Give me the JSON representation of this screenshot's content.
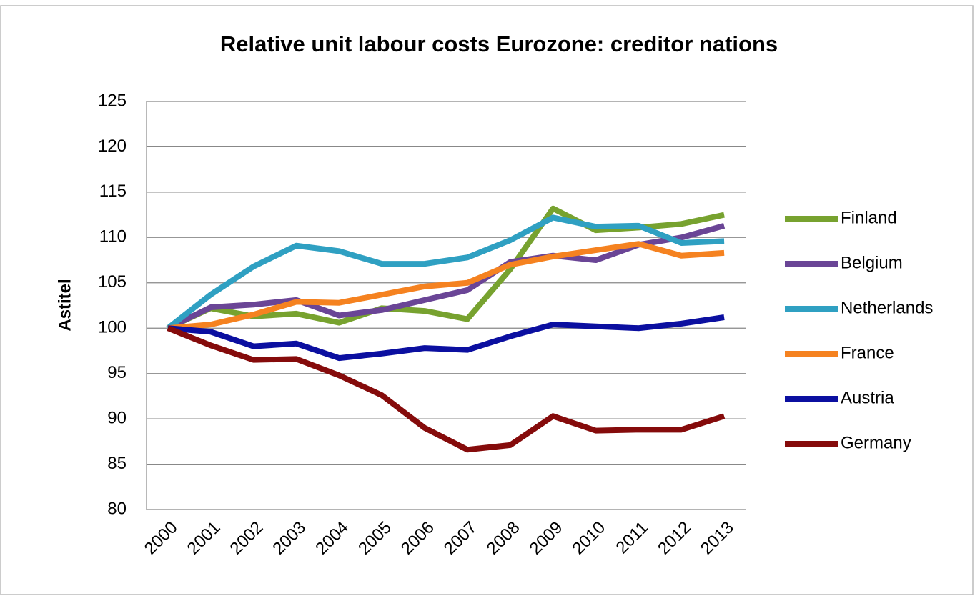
{
  "chart_data": {
    "type": "line",
    "title": "Relative unit labour costs Eurozone: creditor nations",
    "y_label": "Astitel",
    "categories": [
      "2000",
      "2001",
      "2002",
      "2003",
      "2004",
      "2005",
      "2006",
      "2007",
      "2008",
      "2009",
      "2010",
      "2011",
      "2012",
      "2013"
    ],
    "series": [
      {
        "name": "Finland",
        "color": "#77a22f",
        "values": [
          100,
          102.2,
          101.3,
          101.6,
          100.6,
          102.2,
          101.9,
          101.0,
          106.5,
          113.2,
          110.8,
          111.1,
          111.5,
          112.5
        ]
      },
      {
        "name": "Belgium",
        "color": "#6a4596",
        "values": [
          100,
          102.3,
          102.6,
          103.1,
          101.4,
          102.0,
          103.1,
          104.2,
          107.3,
          108.0,
          107.5,
          109.2,
          110.0,
          111.3
        ]
      },
      {
        "name": "Netherlands",
        "color": "#2fa0c2",
        "values": [
          100,
          103.7,
          106.8,
          109.1,
          108.5,
          107.1,
          107.1,
          107.8,
          109.7,
          112.2,
          111.2,
          111.3,
          109.4,
          109.6
        ]
      },
      {
        "name": "France",
        "color": "#f58220",
        "values": [
          100,
          100.4,
          101.5,
          102.9,
          102.8,
          103.7,
          104.6,
          105.0,
          107.0,
          107.9,
          108.6,
          109.3,
          108.0,
          108.3
        ]
      },
      {
        "name": "Austria",
        "color": "#0b0fa0",
        "values": [
          100,
          99.6,
          98.0,
          98.3,
          96.7,
          97.2,
          97.8,
          97.6,
          99.1,
          100.4,
          100.2,
          100.0,
          100.5,
          101.2
        ]
      },
      {
        "name": "Germany",
        "color": "#850b0b",
        "values": [
          100,
          98.1,
          96.5,
          96.6,
          94.8,
          92.6,
          89.0,
          86.6,
          87.1,
          90.3,
          88.7,
          88.8,
          88.8,
          90.3
        ]
      }
    ],
    "ylim": [
      80,
      125
    ],
    "yticks": [
      80,
      85,
      90,
      95,
      100,
      105,
      110,
      115,
      120,
      125
    ],
    "grid": true
  }
}
